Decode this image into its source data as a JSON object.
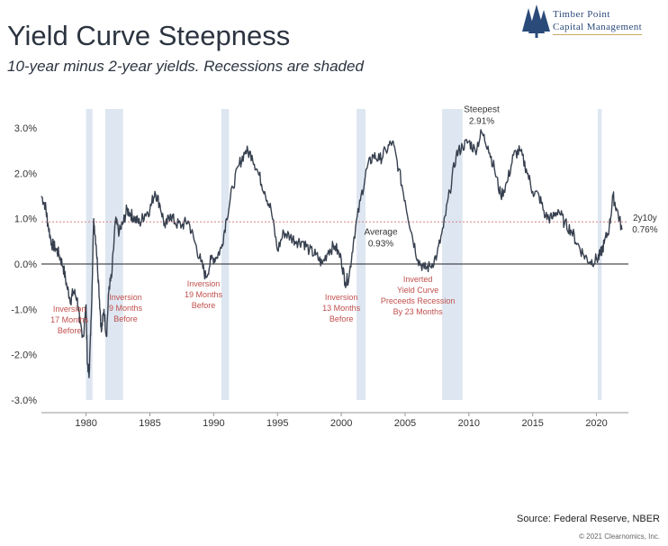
{
  "header": {
    "title": "Yield Curve Steepness",
    "subtitle": "10-year minus 2-year yields. Recessions are shaded"
  },
  "logo": {
    "icon": "pine-trees-icon",
    "line1": "Timber Point",
    "line2": "Capital Management"
  },
  "footer": {
    "source": "Source: Federal Reserve, NBER",
    "copyright": "© 2021 Clearnomics, Inc."
  },
  "colors": {
    "line": "#37404f",
    "recession": "#dde6f1",
    "average": "#d98080",
    "annotation": "#c0504d",
    "text": "#333333"
  },
  "chart_data": {
    "type": "line",
    "xlim": [
      1976.5,
      2022.5
    ],
    "ylim": [
      -3.0,
      3.3
    ],
    "yticks": [
      {
        "value": 3,
        "label": "3.0%"
      },
      {
        "value": 2,
        "label": "2.0%"
      },
      {
        "value": 1,
        "label": "1.0%"
      },
      {
        "value": 0,
        "label": "0.0%"
      },
      {
        "value": -1,
        "label": "-1.0%"
      },
      {
        "value": -2,
        "label": "-2.0%"
      },
      {
        "value": -3,
        "label": "-3.0%"
      }
    ],
    "xticks": [
      {
        "value": 1980,
        "label": "1980"
      },
      {
        "value": 1985,
        "label": "1985"
      },
      {
        "value": 1990,
        "label": "1990"
      },
      {
        "value": 1995,
        "label": "1995"
      },
      {
        "value": 2000,
        "label": "2000"
      },
      {
        "value": 2005,
        "label": "2005"
      },
      {
        "value": 2010,
        "label": "2010"
      },
      {
        "value": 2015,
        "label": "2015"
      },
      {
        "value": 2020,
        "label": "2020"
      }
    ],
    "average": 0.93,
    "recessions": [
      [
        1980.0,
        1980.5
      ],
      [
        1981.5,
        1982.9
      ],
      [
        1990.6,
        1991.2
      ],
      [
        2001.2,
        2001.9
      ],
      [
        2007.9,
        2009.5
      ],
      [
        2020.1,
        2020.4
      ]
    ],
    "series": [
      {
        "x": [
          1976.5,
          1976.8,
          1977.0,
          1977.3,
          1977.6,
          1977.9,
          1978.2,
          1978.5,
          1978.8,
          1979.0,
          1979.3,
          1979.5,
          1979.8,
          1980.0,
          1980.1,
          1980.25,
          1980.4,
          1980.6,
          1980.8,
          1981.0,
          1981.2,
          1981.4,
          1981.6,
          1981.8,
          1982.0,
          1982.3,
          1982.6,
          1982.9,
          1983.2,
          1983.5,
          1983.8,
          1984.2,
          1984.6,
          1985.0,
          1985.4,
          1985.8,
          1986.2,
          1986.6,
          1987.0,
          1987.5,
          1988.0,
          1988.5,
          1989.0,
          1989.4,
          1989.8,
          1990.2,
          1990.6,
          1991.0,
          1991.5,
          1992.0,
          1992.5,
          1993.0,
          1993.5,
          1994.0,
          1994.5,
          1995.0,
          1995.5,
          1996.0,
          1996.5,
          1997.0,
          1997.5,
          1998.0,
          1998.5,
          1999.0,
          1999.5,
          2000.0,
          2000.3,
          2000.6,
          2001.0,
          2001.5,
          2002.0,
          2002.5,
          2003.0,
          2003.5,
          2004.0,
          2004.5,
          2005.0,
          2005.5,
          2006.0,
          2006.5,
          2007.0,
          2007.5,
          2008.0,
          2008.5,
          2009.0,
          2009.5,
          2010.0,
          2010.5,
          2011.0,
          2011.5,
          2012.0,
          2012.5,
          2013.0,
          2013.5,
          2014.0,
          2014.5,
          2015.0,
          2015.5,
          2016.0,
          2016.5,
          2017.0,
          2017.5,
          2018.0,
          2018.5,
          2019.0,
          2019.5,
          2020.0,
          2020.3,
          2020.6,
          2021.0,
          2021.3,
          2021.6,
          2022.0
        ],
        "y": [
          1.5,
          1.3,
          0.9,
          0.45,
          0.35,
          0.2,
          -0.05,
          -0.5,
          -0.8,
          -0.6,
          -0.75,
          -1.3,
          -1.6,
          -0.9,
          -2.2,
          -2.4,
          -1.2,
          1.0,
          0.4,
          -0.5,
          -1.5,
          -1.0,
          -1.6,
          -0.5,
          -0.3,
          0.95,
          0.7,
          0.9,
          1.2,
          1.1,
          1.0,
          0.9,
          1.1,
          1.2,
          1.6,
          1.3,
          0.8,
          1.1,
          0.9,
          0.85,
          0.95,
          0.5,
          0.05,
          -0.3,
          0.1,
          0.15,
          0.35,
          1.0,
          1.7,
          2.2,
          2.5,
          2.4,
          2.0,
          1.6,
          1.2,
          0.3,
          0.7,
          0.6,
          0.5,
          0.5,
          0.3,
          0.2,
          0.0,
          0.3,
          0.4,
          0.1,
          -0.4,
          -0.3,
          0.6,
          1.4,
          2.1,
          2.4,
          2.3,
          2.5,
          2.7,
          2.1,
          1.4,
          0.7,
          0.1,
          -0.1,
          -0.05,
          0.2,
          0.8,
          1.6,
          2.4,
          2.6,
          2.7,
          2.5,
          2.9,
          2.6,
          2.1,
          1.5,
          1.8,
          2.4,
          2.5,
          2.1,
          1.6,
          1.5,
          1.05,
          1.0,
          1.2,
          0.9,
          0.75,
          0.45,
          0.2,
          0.05,
          0.1,
          0.2,
          0.45,
          0.8,
          1.5,
          1.2,
          0.76
        ]
      }
    ],
    "annotations": [
      {
        "lines": [
          "Inversion",
          "17 Months",
          "Before"
        ],
        "x": 1978.7,
        "y": -1.05,
        "style": "annotation"
      },
      {
        "lines": [
          "Inversion",
          "9 Months",
          "Before"
        ],
        "x": 1983.1,
        "y": -0.8,
        "style": "annotation"
      },
      {
        "lines": [
          "Inversion",
          "19 Months",
          "Before"
        ],
        "x": 1989.2,
        "y": -0.5,
        "style": "annotation"
      },
      {
        "lines": [
          "Inversion",
          "13 Months",
          "Before"
        ],
        "x": 2000.0,
        "y": -0.8,
        "style": "annotation"
      },
      {
        "lines": [
          "Inverted",
          "Yield Curve",
          "Preceeds Recession",
          "By 23 Months"
        ],
        "x": 2006.0,
        "y": -0.4,
        "style": "annotation"
      },
      {
        "lines": [
          "Average",
          "0.93%"
        ],
        "x": 2003.1,
        "y": 0.65,
        "style": "label"
      },
      {
        "lines": [
          "Steepest",
          "2.91%"
        ],
        "x": 2011.0,
        "y": 3.35,
        "style": "label"
      },
      {
        "lines": [
          "2y10y",
          "0.76%"
        ],
        "x": 2023.8,
        "y": 0.95,
        "style": "label"
      }
    ]
  }
}
